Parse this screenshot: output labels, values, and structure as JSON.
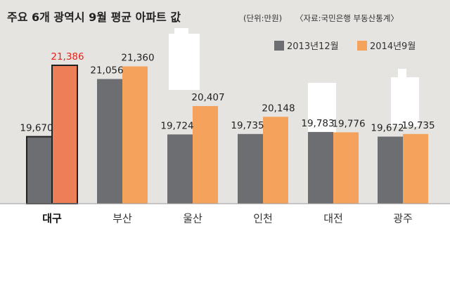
{
  "header": {
    "title": "주요 6개 광역시 9월 평균 아파트 값",
    "unit": "(단위:만원)",
    "source": "〈자료:국민은행 부동산통계〉"
  },
  "colors": {
    "dec2013": "#6d6e71",
    "sep2014": "#f5a25d",
    "highlight_sep2014": "#ec7f58",
    "highlight_value": "#e8231a",
    "background_skyline": "#e6e4e1"
  },
  "chart_data": {
    "type": "bar",
    "title": "주요 6개 광역시 9월 평균 아파트 값",
    "categories": [
      "대구",
      "부산",
      "울산",
      "인천",
      "대전",
      "광주"
    ],
    "highlight_category": "대구",
    "series": [
      {
        "name": "2013년12월",
        "values": [
          19670,
          21056,
          19724,
          19735,
          19783,
          19672
        ],
        "labels": [
          "19,670",
          "21,056",
          "19,724",
          "19,735",
          "19,783",
          "19,672"
        ]
      },
      {
        "name": "2014년9월",
        "values": [
          21386,
          21360,
          20407,
          20148,
          19776,
          19735
        ],
        "labels": [
          "21,386",
          "21,360",
          "20,407",
          "20,148",
          "19,776",
          "19,735"
        ]
      }
    ],
    "unit": "만원",
    "legend_position": "top-right",
    "grid": false
  }
}
